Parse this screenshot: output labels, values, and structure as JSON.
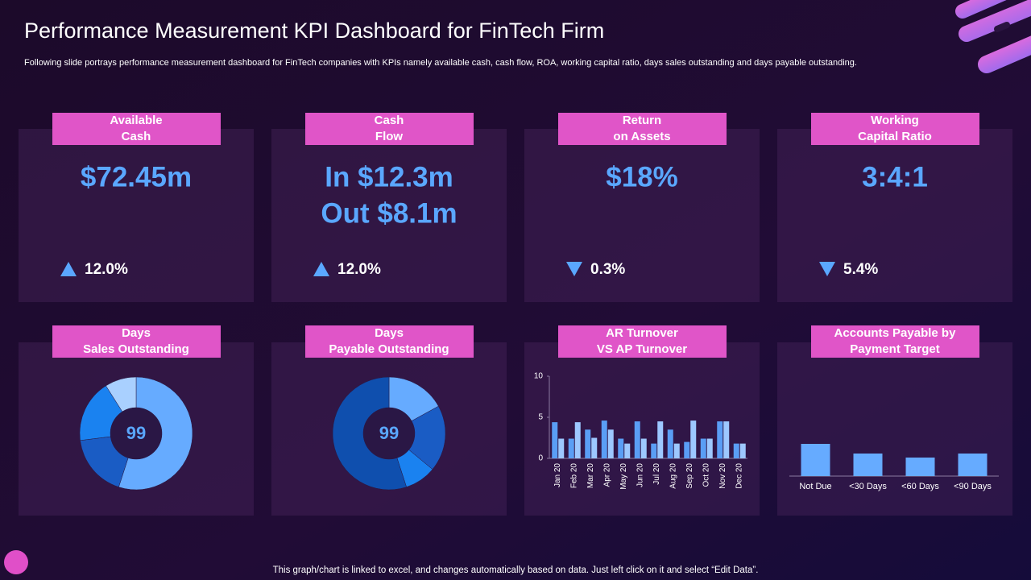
{
  "title": "Performance Measurement KPI Dashboard for FinTech Firm",
  "subtitle": "Following slide portrays performance measurement dashboard for FinTech companies with KPIs namely available cash, cash flow, ROA,  working capital ratio, days sales outstanding and days payable outstanding.",
  "footer": "This graph/chart is linked to excel,  and changes automatically based on data. Just left click on it and select “Edit Data”.",
  "kpis": [
    {
      "label": [
        "Available",
        "Cash"
      ],
      "value": [
        "$72.45m"
      ],
      "change": "12.0%",
      "direction": "up"
    },
    {
      "label": [
        "Cash",
        "Flow"
      ],
      "value": [
        "In $12.3m",
        "Out $8.1m"
      ],
      "change": "12.0%",
      "direction": "up"
    },
    {
      "label": [
        "Return",
        "on Assets"
      ],
      "value": [
        "$18%"
      ],
      "change": "0.3%",
      "direction": "down"
    },
    {
      "label": [
        "Working",
        "Capital Ratio"
      ],
      "value": [
        "3:4:1"
      ],
      "change": "5.4%",
      "direction": "down"
    }
  ],
  "chart_data": [
    {
      "type": "donut",
      "title": [
        "Days",
        "Sales Outstanding"
      ],
      "center_label": "99",
      "values": [
        55,
        18,
        18,
        9
      ],
      "colors": [
        "#66abff",
        "#1a5cc4",
        "#1a82f0",
        "#a9d0ff"
      ]
    },
    {
      "type": "donut",
      "title": [
        "Days",
        "Payable Outstanding"
      ],
      "center_label": "99",
      "values": [
        17,
        19,
        9,
        55
      ],
      "colors": [
        "#66abff",
        "#1a5cc4",
        "#1a82f0",
        "#0f4fae"
      ]
    },
    {
      "type": "bar",
      "title": [
        "AR Turnover",
        "VS AP Turnover"
      ],
      "categories": [
        "Jan 20",
        "Feb 20",
        "Mar 20",
        "Apr 20",
        "May 20",
        "Jun 20",
        "Jul 20",
        "Aug 20",
        "Sep 20",
        "Oct 20",
        "Nov 20",
        "Dec 20"
      ],
      "series": [
        {
          "color": "#5a9ef5",
          "values": [
            4.4,
            2.4,
            3.5,
            4.6,
            2.4,
            4.5,
            1.8,
            3.5,
            2.0,
            2.4,
            4.5,
            1.8
          ]
        },
        {
          "color": "#9dc8ff",
          "values": [
            2.4,
            4.4,
            2.5,
            3.5,
            1.8,
            2.4,
            4.5,
            1.8,
            4.6,
            2.4,
            4.5,
            1.8
          ]
        }
      ],
      "ylim": [
        0,
        10
      ],
      "yticks": [
        0,
        5,
        10
      ]
    },
    {
      "type": "plainbar",
      "title": [
        "Accounts Payable by",
        "Payment Target"
      ],
      "categories": [
        "Not Due",
        "<30 Days",
        "<60 Days",
        "<90 Days"
      ],
      "values": [
        4.0,
        2.8,
        2.3,
        2.8
      ],
      "color": "#66abff"
    }
  ]
}
